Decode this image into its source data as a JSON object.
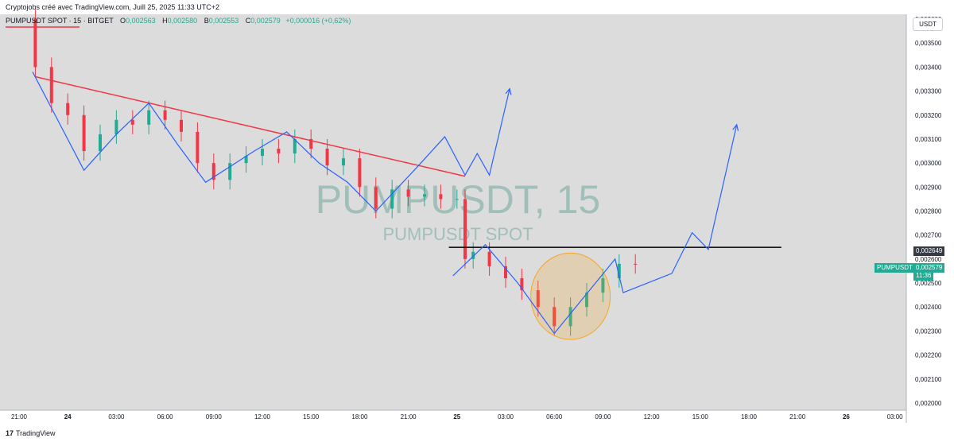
{
  "header": {
    "author_line": "Cryptojobs créé avec TradingView.com, Juill 25, 2025 11:33 UTC+2"
  },
  "legend": {
    "symbol": "PUMPUSDT SPOT · 15 · BITGET",
    "o_label": "O",
    "o_value": "0,002563",
    "h_label": "H",
    "h_value": "0,002580",
    "b_label": "B",
    "b_value": "0,002553",
    "c_label": "C",
    "c_value": "0,002579",
    "change": "+0,000016 (+0,62%)"
  },
  "currency": "USDT",
  "watermark": {
    "main": "PUMPUSDT, 15",
    "sub": "PUMPUSDT SPOT"
  },
  "price_tags": {
    "level": {
      "value": "0,002649",
      "color": "#363a45"
    },
    "current": {
      "symbol": "PUMPUSDT",
      "value": "0,002579",
      "countdown": "11:36",
      "color": "#22ab94"
    }
  },
  "footer": {
    "logo": "17",
    "brand": "TradingView"
  },
  "colors": {
    "up": "#22ab94",
    "down": "#f23645",
    "trendline": "#f23645",
    "projection": "#2962ff",
    "level": "#000000",
    "highlight": "#f5a623",
    "plot_bg": "#dcdcdc"
  },
  "chart_data": {
    "type": "candlestick",
    "y_axis_ticks": [
      "0,003600",
      "0,003500",
      "0,003400",
      "0,003300",
      "0,003200",
      "0,003100",
      "0,003000",
      "0,002900",
      "0,002800",
      "0,002700",
      "0,002600",
      "0,002500",
      "0,002400",
      "0,002300",
      "0,002200",
      "0,002100",
      "0,002000"
    ],
    "ylim": [
      0.00197,
      0.00362
    ],
    "x_axis_ticks": [
      {
        "label": "21:00",
        "t": "2025-07-23 21:00"
      },
      {
        "label": "24",
        "t": "2025-07-24 00:00"
      },
      {
        "label": "03:00",
        "t": "2025-07-24 03:00"
      },
      {
        "label": "06:00",
        "t": "2025-07-24 06:00"
      },
      {
        "label": "09:00",
        "t": "2025-07-24 09:00"
      },
      {
        "label": "12:00",
        "t": "2025-07-24 12:00"
      },
      {
        "label": "15:00",
        "t": "2025-07-24 15:00"
      },
      {
        "label": "18:00",
        "t": "2025-07-24 18:00"
      },
      {
        "label": "21:00",
        "t": "2025-07-24 21:00"
      },
      {
        "label": "25",
        "t": "2025-07-25 00:00"
      },
      {
        "label": "03:00",
        "t": "2025-07-25 03:00"
      },
      {
        "label": "06:00",
        "t": "2025-07-25 06:00"
      },
      {
        "label": "09:00",
        "t": "2025-07-25 09:00"
      },
      {
        "label": "12:00",
        "t": "2025-07-25 12:00"
      },
      {
        "label": "15:00",
        "t": "2025-07-25 15:00"
      },
      {
        "label": "18:00",
        "t": "2025-07-25 18:00"
      },
      {
        "label": "21:00",
        "t": "2025-07-25 21:00"
      },
      {
        "label": "26",
        "t": "2025-07-26 00:00"
      },
      {
        "label": "03:00",
        "t": "2025-07-26 03:00"
      }
    ],
    "interval": "15",
    "candles_close": [
      {
        "t": "2025-07-23 22:00",
        "c": 0.0034
      },
      {
        "t": "2025-07-23 23:00",
        "c": 0.00325
      },
      {
        "t": "2025-07-24 00:00",
        "c": 0.0032
      },
      {
        "t": "2025-07-24 01:00",
        "c": 0.00305
      },
      {
        "t": "2025-07-24 02:00",
        "c": 0.00312
      },
      {
        "t": "2025-07-24 03:00",
        "c": 0.00318
      },
      {
        "t": "2025-07-24 04:00",
        "c": 0.00316
      },
      {
        "t": "2025-07-24 05:00",
        "c": 0.00322
      },
      {
        "t": "2025-07-24 06:00",
        "c": 0.00318
      },
      {
        "t": "2025-07-24 07:00",
        "c": 0.00313
      },
      {
        "t": "2025-07-24 08:00",
        "c": 0.003
      },
      {
        "t": "2025-07-24 09:00",
        "c": 0.00293
      },
      {
        "t": "2025-07-24 10:00",
        "c": 0.003
      },
      {
        "t": "2025-07-24 11:00",
        "c": 0.00303
      },
      {
        "t": "2025-07-24 12:00",
        "c": 0.00306
      },
      {
        "t": "2025-07-24 13:00",
        "c": 0.00304
      },
      {
        "t": "2025-07-24 14:00",
        "c": 0.0031
      },
      {
        "t": "2025-07-24 15:00",
        "c": 0.00306
      },
      {
        "t": "2025-07-24 16:00",
        "c": 0.00299
      },
      {
        "t": "2025-07-24 17:00",
        "c": 0.00302
      },
      {
        "t": "2025-07-24 18:00",
        "c": 0.0029
      },
      {
        "t": "2025-07-24 19:00",
        "c": 0.00281
      },
      {
        "t": "2025-07-24 20:00",
        "c": 0.00289
      },
      {
        "t": "2025-07-24 21:00",
        "c": 0.00286
      },
      {
        "t": "2025-07-24 22:00",
        "c": 0.00287
      },
      {
        "t": "2025-07-24 23:00",
        "c": 0.00285
      },
      {
        "t": "2025-07-25 00:00",
        "c": 0.00285
      },
      {
        "t": "2025-07-25 00:30",
        "c": 0.0026
      },
      {
        "t": "2025-07-25 01:00",
        "c": 0.00263
      },
      {
        "t": "2025-07-25 02:00",
        "c": 0.00257
      },
      {
        "t": "2025-07-25 03:00",
        "c": 0.00252
      },
      {
        "t": "2025-07-25 04:00",
        "c": 0.00247
      },
      {
        "t": "2025-07-25 05:00",
        "c": 0.0024
      },
      {
        "t": "2025-07-25 06:00",
        "c": 0.00232
      },
      {
        "t": "2025-07-25 07:00",
        "c": 0.0024
      },
      {
        "t": "2025-07-25 08:00",
        "c": 0.00246
      },
      {
        "t": "2025-07-25 09:00",
        "c": 0.00252
      },
      {
        "t": "2025-07-25 10:00",
        "c": 0.00258
      },
      {
        "t": "2025-07-25 11:00",
        "c": 0.002579
      }
    ],
    "annotations": [
      {
        "type": "trendline",
        "from": {
          "t": "2025-07-23 22:00",
          "p": 0.00336
        },
        "to": {
          "t": "2025-07-25 00:30",
          "p": 0.002945
        }
      },
      {
        "type": "horizontal_level",
        "from_t": "2025-07-24 23:30",
        "to_t": "2025-07-25 20:00",
        "p": 0.002649
      },
      {
        "type": "ellipse",
        "center": {
          "t": "2025-07-25 07:00",
          "p": 0.002445
        },
        "rx_hours": 1.75,
        "ry_price": 0.00018
      },
      {
        "type": "path",
        "name": "projection-a",
        "points": [
          {
            "t": "2025-07-23 21:50",
            "p": 0.00338
          },
          {
            "t": "2025-07-24 01:00",
            "p": 0.00297
          },
          {
            "t": "2025-07-24 03:00",
            "p": 0.00312
          },
          {
            "t": "2025-07-24 05:00",
            "p": 0.00325
          },
          {
            "t": "2025-07-24 06:45",
            "p": 0.00308
          },
          {
            "t": "2025-07-24 08:30",
            "p": 0.00292
          },
          {
            "t": "2025-07-24 11:30",
            "p": 0.00305
          },
          {
            "t": "2025-07-24 13:30",
            "p": 0.00313
          },
          {
            "t": "2025-07-24 15:30",
            "p": 0.003
          },
          {
            "t": "2025-07-24 17:15",
            "p": 0.00292
          },
          {
            "t": "2025-07-24 19:00",
            "p": 0.0028
          },
          {
            "t": "2025-07-24 21:30",
            "p": 0.00298
          },
          {
            "t": "2025-07-24 23:15",
            "p": 0.00311
          },
          {
            "t": "2025-07-25 00:30",
            "p": 0.00295
          },
          {
            "t": "2025-07-25 01:15",
            "p": 0.00304
          },
          {
            "t": "2025-07-25 02:00",
            "p": 0.00295
          },
          {
            "t": "2025-07-25 03:15",
            "p": 0.00331
          }
        ]
      },
      {
        "type": "path",
        "name": "projection-b",
        "points": [
          {
            "t": "2025-07-24 23:45",
            "p": 0.00253
          },
          {
            "t": "2025-07-25 01:45",
            "p": 0.00266
          },
          {
            "t": "2025-07-25 03:45",
            "p": 0.0025
          },
          {
            "t": "2025-07-25 06:00",
            "p": 0.00229
          },
          {
            "t": "2025-07-25 09:45",
            "p": 0.0026
          },
          {
            "t": "2025-07-25 10:15",
            "p": 0.00246
          },
          {
            "t": "2025-07-25 13:15",
            "p": 0.00254
          },
          {
            "t": "2025-07-25 14:30",
            "p": 0.00271
          },
          {
            "t": "2025-07-25 15:30",
            "p": 0.00264
          },
          {
            "t": "2025-07-25 17:15",
            "p": 0.00316
          }
        ]
      }
    ]
  }
}
